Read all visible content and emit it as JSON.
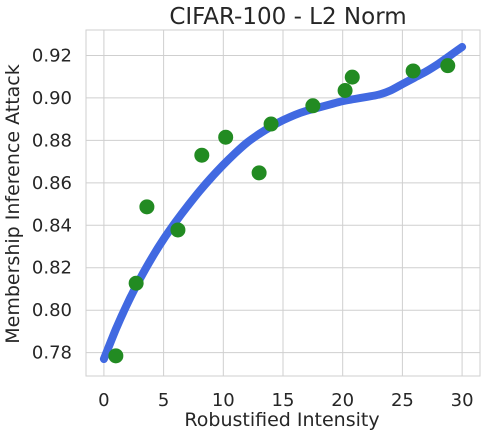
{
  "chart_data": {
    "type": "scatter",
    "title": "CIFAR-100 - L2 Norm",
    "xlabel": "Robustified Intensity",
    "ylabel": "Membership Inference Attack",
    "xlim": [
      -1.5,
      31.5
    ],
    "ylim": [
      0.769,
      0.932
    ],
    "xticks": [
      0,
      5,
      10,
      15,
      20,
      25,
      30
    ],
    "xtick_labels": [
      "0",
      "5",
      "10",
      "15",
      "20",
      "25",
      "30"
    ],
    "yticks": [
      0.78,
      0.8,
      0.82,
      0.84,
      0.86,
      0.88,
      0.9,
      0.92
    ],
    "ytick_labels": [
      "0.78",
      "0.80",
      "0.82",
      "0.84",
      "0.86",
      "0.88",
      "0.90",
      "0.92"
    ],
    "grid": true,
    "series": [
      {
        "kind": "scatter",
        "color": "#228b22",
        "x": [
          1.0,
          2.7,
          3.6,
          6.2,
          8.2,
          10.2,
          13.0,
          14.0,
          17.5,
          20.2,
          20.8,
          25.9,
          28.8
        ],
        "y": [
          0.7785,
          0.8127,
          0.8487,
          0.8378,
          0.873,
          0.8815,
          0.8647,
          0.8877,
          0.8963,
          0.9035,
          0.9098,
          0.9127,
          0.9152
        ]
      },
      {
        "kind": "line",
        "color": "#4169e1",
        "x": [
          0,
          1,
          2,
          3,
          4,
          5,
          6,
          7,
          8,
          9,
          10,
          11,
          12,
          13,
          14,
          15,
          16,
          17,
          18,
          19,
          20,
          21,
          22,
          23,
          24,
          25,
          26,
          27,
          28,
          29,
          30
        ],
        "y": [
          0.777,
          0.791,
          0.8035,
          0.8145,
          0.8245,
          0.8335,
          0.8415,
          0.849,
          0.856,
          0.8625,
          0.8685,
          0.874,
          0.879,
          0.883,
          0.8865,
          0.8895,
          0.892,
          0.894,
          0.8955,
          0.897,
          0.8985,
          0.8995,
          0.9005,
          0.9015,
          0.9035,
          0.9065,
          0.9095,
          0.9125,
          0.916,
          0.92,
          0.924
        ]
      }
    ]
  }
}
